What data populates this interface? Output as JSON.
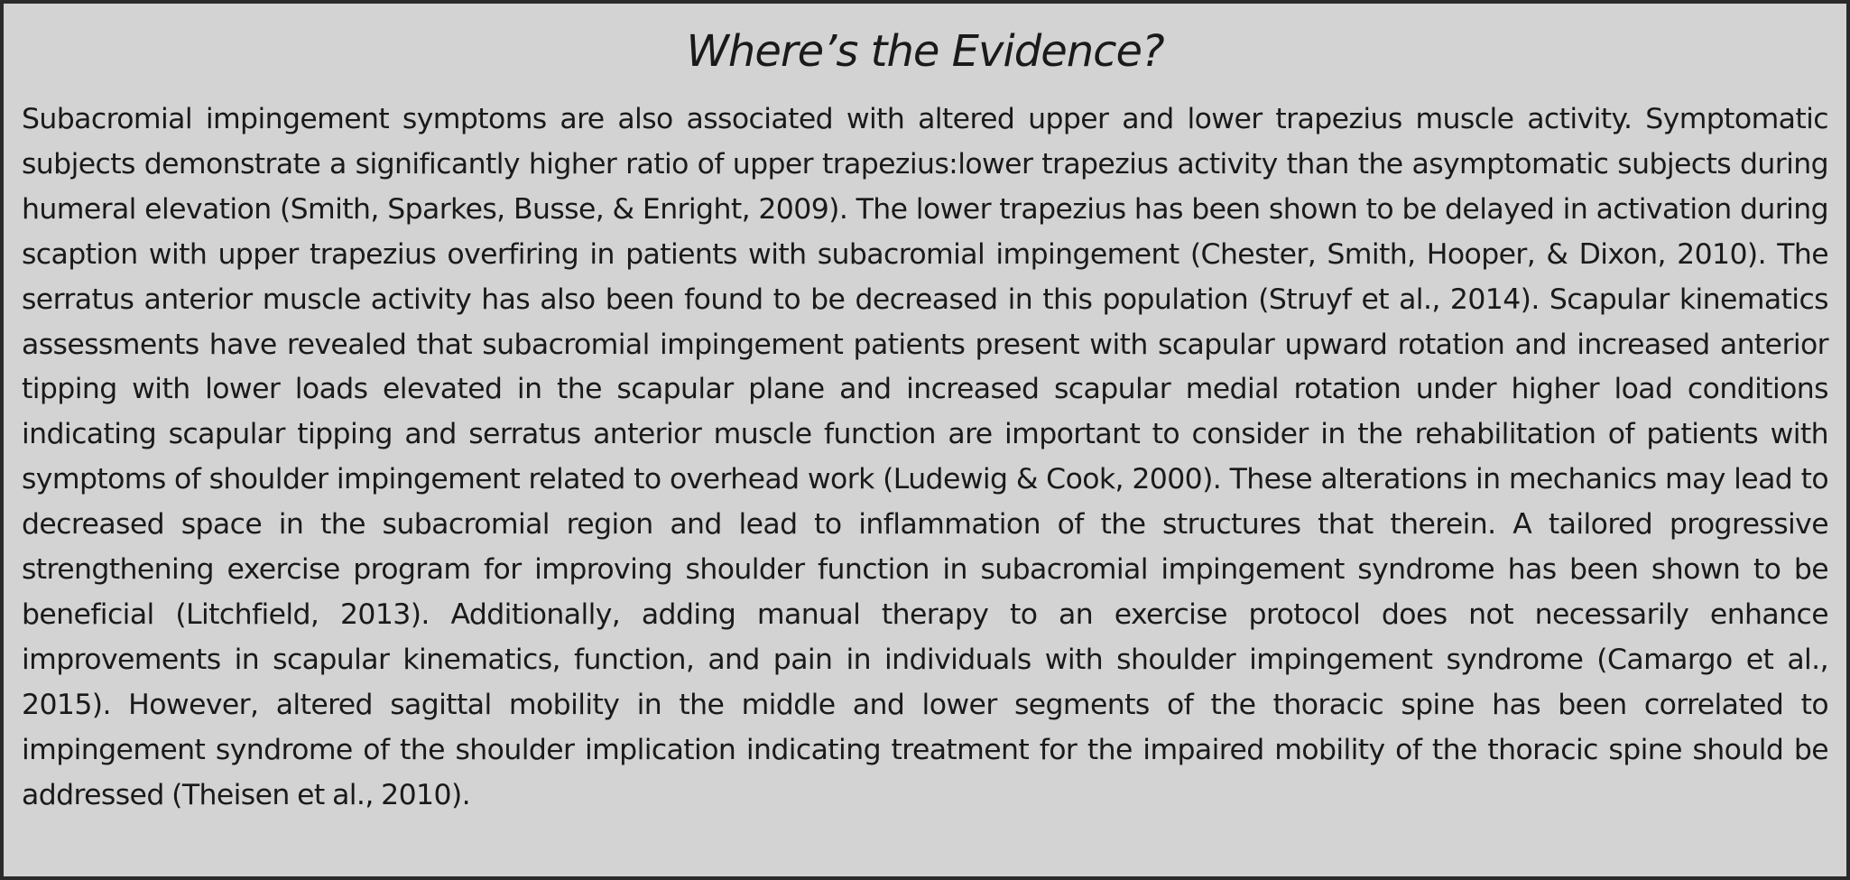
{
  "sidebar_box": {
    "title": "Where’s the Evidence?",
    "body": "Subacromial impingement symptoms are also associated with altered upper and lower trapezius muscle activity. Symptomatic subjects demonstrate a significantly higher ratio of upper trapezius:lower trapezius activity than the asymp­tomatic subjects during humeral elevation (Smith, Sparkes, Busse, & Enright, 2009). The lower trapezius has been shown to be delayed in activation during scaption with upper trapezius overfiring in patients with subacromial impingement (Chester, Smith, Hooper, & Dixon, 2010). The serratus anterior muscle activity has also been found to be decreased in this population (Struyf et al., 2014). Scapular kinematics assessments have revealed that subacromial impingement patients present with scapular upward rotation and increased anterior tipping with lower loads elevated in the scapular plane and increased scapular medial rotation under higher load conditions indicating scapular tipping and serratus anterior muscle function are important to consider in the rehabilitation of patients with symptoms of shoulder impingement related to overhead work (Ludewig & Cook, 2000). These alterations in mechanics may lead to decreased space in the subacromial region and lead to inflammation of the structures that therein. A tailored progressive strengthening exercise program for improving shoulder function in subacromial impingement syndrome has been shown to be beneficial (Litchfield, 2013). Additionally, adding manual therapy to an exercise protocol does not necessarily enhance improvements in scapular kine­matics, function, and pain in individuals with shoulder impingement syndrome (Camargo et al., 2015). However, altered sagittal mobility in the middle and lower segments of the thoracic spine has been correlated to impingement syndrome of the shoulder implication indicating treatment for the impaired mobility of the thoracic spine should be addressed (Theisen et al., 2010)."
  }
}
